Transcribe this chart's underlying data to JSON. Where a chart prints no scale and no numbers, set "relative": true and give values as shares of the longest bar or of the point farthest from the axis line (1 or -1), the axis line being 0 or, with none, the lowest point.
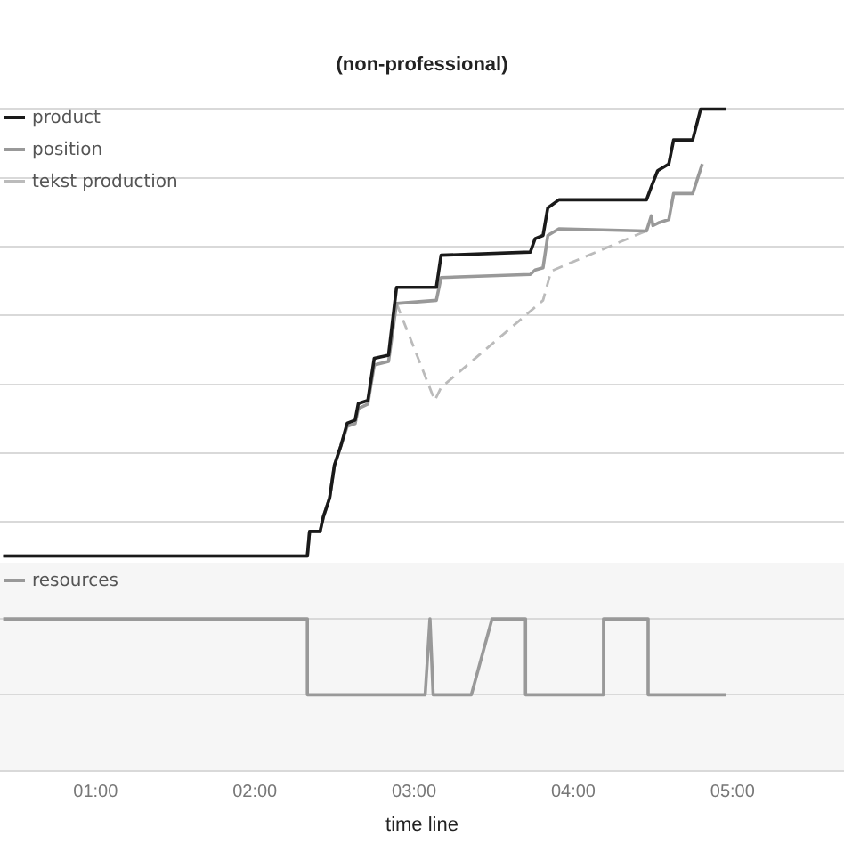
{
  "chart_data": [
    {
      "type": "line",
      "title": "(non-professional)",
      "relative": true,
      "xlim": [
        0.4,
        5.7
      ],
      "tick_labels": false,
      "grid": "y",
      "legend": "top left",
      "marker": "none",
      "series": [
        {
          "name": "product",
          "color": "#1a1a1a",
          "line_style": "solid",
          "x": [
            0.42,
            2.33,
            2.344,
            2.41,
            2.43,
            2.47,
            2.5,
            2.54,
            2.58,
            2.63,
            2.65,
            2.71,
            2.75,
            2.84,
            2.89,
            3.14,
            3.17,
            3.73,
            3.76,
            3.81,
            3.84,
            3.91,
            4.46,
            4.49,
            4.53,
            4.6,
            4.63,
            4.75,
            4.8,
            4.96
          ],
          "values": [
            0,
            0,
            0.055,
            0.055,
            0.087,
            0.13,
            0.203,
            0.246,
            0.297,
            0.304,
            0.341,
            0.348,
            0.442,
            0.449,
            0.601,
            0.601,
            0.673,
            0.68,
            0.71,
            0.717,
            0.779,
            0.797,
            0.797,
            0.826,
            0.862,
            0.877,
            0.931,
            0.931,
            1,
            1
          ]
        },
        {
          "name": "position",
          "color": "#999999",
          "line_style": "solid",
          "x": [
            0.42,
            2.33,
            2.344,
            2.41,
            2.43,
            2.47,
            2.5,
            2.54,
            2.58,
            2.63,
            2.65,
            2.71,
            2.75,
            2.84,
            2.89,
            3.14,
            3.17,
            3.73,
            3.76,
            3.81,
            3.84,
            3.91,
            4.46,
            4.49,
            4.5,
            4.54,
            4.6,
            4.63,
            4.75,
            4.81
          ],
          "values": [
            0,
            0,
            0.055,
            0.055,
            0.087,
            0.13,
            0.203,
            0.246,
            0.29,
            0.296,
            0.33,
            0.34,
            0.427,
            0.435,
            0.565,
            0.572,
            0.623,
            0.63,
            0.64,
            0.645,
            0.717,
            0.732,
            0.727,
            0.761,
            0.739,
            0.746,
            0.753,
            0.811,
            0.811,
            0.877
          ]
        },
        {
          "name": "tekst production",
          "color": "#bbbbbb",
          "line_style": "dashed",
          "x": [
            2.89,
            3.13,
            3.17,
            3.81,
            3.86,
            3.91,
            4.49
          ],
          "values": [
            0.565,
            0.348,
            0.377,
            0.572,
            0.637,
            0.645,
            0.732
          ]
        }
      ]
    },
    {
      "type": "line",
      "relative": true,
      "xlim": [
        0.4,
        5.7
      ],
      "xlabel": "time line",
      "grid": "y",
      "legend": "top left",
      "marker": "none",
      "xticks": [
        {
          "value": 1,
          "label": "01:00"
        },
        {
          "value": 2,
          "label": "02:00"
        },
        {
          "value": 3,
          "label": "03:00"
        },
        {
          "value": 4,
          "label": "04:00"
        },
        {
          "value": 5,
          "label": "05:00"
        }
      ],
      "series": [
        {
          "name": "resources",
          "color": "#999999",
          "line_style": "solid",
          "x": [
            0.42,
            2.33,
            2.33,
            3.07,
            3.1,
            3.12,
            3.36,
            3.49,
            3.7,
            3.7,
            4.19,
            4.19,
            4.47,
            4.47,
            4.96
          ],
          "values": [
            1,
            1,
            0,
            0,
            1,
            0,
            0,
            1,
            1,
            0,
            0,
            1,
            1,
            0,
            0
          ]
        }
      ]
    }
  ]
}
